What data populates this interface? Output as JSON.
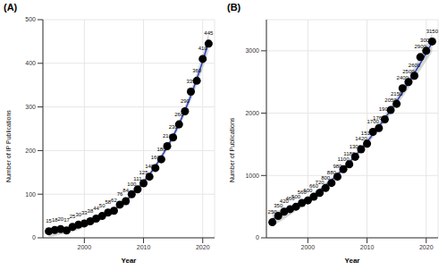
{
  "chart_data": [
    {
      "type": "scatter",
      "title": "(A)",
      "x_label": "Year",
      "y_label": "Number of IP Publications",
      "x": [
        1994,
        1995,
        1996,
        1997,
        1998,
        1999,
        2000,
        2001,
        2002,
        2003,
        2004,
        2005,
        2006,
        2007,
        2008,
        2009,
        2010,
        2011,
        2012,
        2013,
        2014,
        2015,
        2016,
        2017,
        2018,
        2019,
        2020,
        2021
      ],
      "values": [
        15,
        18,
        20,
        17,
        25,
        30,
        33,
        38,
        44,
        50,
        58,
        62,
        76,
        84,
        100,
        111,
        125,
        140,
        160,
        180,
        210,
        230,
        260,
        290,
        335,
        360,
        410,
        445
      ],
      "color": "#000000",
      "marker": "circle",
      "data_labels": true,
      "grid": true,
      "xlim": [
        1993,
        2022
      ],
      "xticks": [
        2000,
        2010,
        2020
      ],
      "ylim": [
        0,
        500
      ],
      "yticks": [
        0,
        100,
        200,
        300,
        400,
        500
      ],
      "fit": {
        "color": "#2c3fbf",
        "values": [
          12,
          13,
          15,
          17,
          20,
          24,
          29,
          34,
          40,
          47,
          55,
          64,
          74,
          85,
          98,
          112,
          128,
          145,
          164,
          185,
          208,
          233,
          261,
          292,
          326,
          364,
          405,
          450
        ],
        "lower": [
          2,
          4,
          7,
          10,
          14,
          18,
          24,
          29,
          35,
          42,
          50,
          59,
          69,
          80,
          93,
          106,
          122,
          139,
          158,
          178,
          201,
          225,
          252,
          282,
          314,
          350,
          388,
          429
        ],
        "upper": [
          22,
          22,
          23,
          24,
          26,
          30,
          34,
          39,
          45,
          52,
          60,
          69,
          79,
          90,
          103,
          118,
          134,
          151,
          170,
          192,
          215,
          241,
          270,
          302,
          338,
          378,
          422,
          471
        ]
      }
    },
    {
      "type": "scatter",
      "title": "(B)",
      "x_label": "Year",
      "y_label": "Number of Publications",
      "x": [
        1994,
        1995,
        1996,
        1997,
        1998,
        1999,
        2000,
        2001,
        2002,
        2003,
        2004,
        2005,
        2006,
        2007,
        2008,
        2009,
        2010,
        2011,
        2012,
        2013,
        2014,
        2015,
        2016,
        2017,
        2018,
        2019,
        2020,
        2021
      ],
      "values": [
        250,
        350,
        420,
        460,
        500,
        560,
        600,
        660,
        720,
        800,
        880,
        980,
        1100,
        1180,
        1300,
        1420,
        1510,
        1700,
        1760,
        1900,
        2050,
        2150,
        2400,
        2500,
        2600,
        2900,
        3000,
        3150
      ],
      "color": "#000000",
      "marker": "circle",
      "data_labels": true,
      "grid": true,
      "xlim": [
        1993,
        2022
      ],
      "xticks": [
        2000,
        2010,
        2020
      ],
      "ylim": [
        0,
        3500
      ],
      "yticks": [
        0,
        1000,
        2000,
        3000
      ],
      "fit": {
        "color": "#2c3fbf",
        "values": [
          300,
          340,
          385,
          435,
          490,
          550,
          615,
          685,
          760,
          840,
          925,
          1015,
          1110,
          1210,
          1315,
          1425,
          1540,
          1660,
          1785,
          1915,
          2050,
          2190,
          2335,
          2485,
          2640,
          2800,
          2965,
          3135
        ],
        "lower": [
          180,
          240,
          300,
          365,
          430,
          495,
          565,
          640,
          715,
          795,
          880,
          970,
          1065,
          1165,
          1270,
          1375,
          1490,
          1605,
          1730,
          1855,
          1985,
          2120,
          2255,
          2395,
          2540,
          2685,
          2835,
          2985
        ],
        "upper": [
          420,
          440,
          470,
          505,
          550,
          605,
          665,
          730,
          805,
          885,
          970,
          1060,
          1155,
          1255,
          1360,
          1475,
          1590,
          1715,
          1840,
          1975,
          2115,
          2260,
          2415,
          2575,
          2740,
          2915,
          3095,
          3285
        ]
      }
    }
  ]
}
